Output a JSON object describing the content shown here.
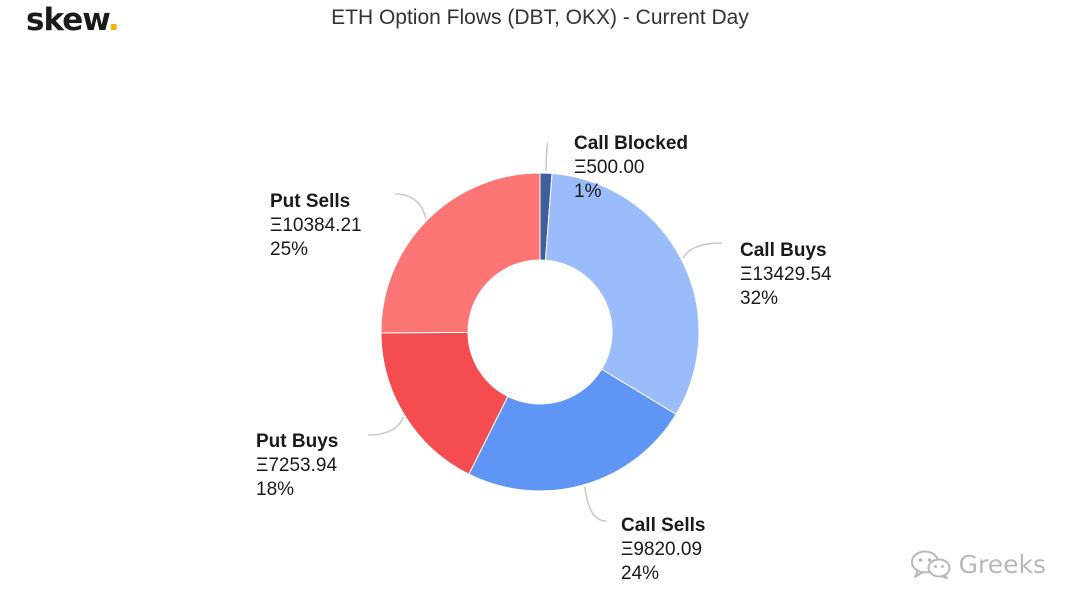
{
  "brand": {
    "name": "skew",
    "dot": "."
  },
  "watermark": {
    "text": "Greeks",
    "icon": "wechat-icon"
  },
  "chart_data": {
    "type": "pie",
    "donut": true,
    "title": "ETH Option Flows (DBT, OKX) - Current Day",
    "currency_symbol": "Ξ",
    "start_angle_deg": 0,
    "slices": [
      {
        "label": "Call Blocked",
        "value": 500.0,
        "value_text": "Ξ500.00",
        "percent_text": "1%",
        "color": "#3e5f9c"
      },
      {
        "label": "Call Buys",
        "value": 13429.54,
        "value_text": "Ξ13429.54",
        "percent_text": "32%",
        "color": "#9bbcfb"
      },
      {
        "label": "Call Sells",
        "value": 9820.09,
        "value_text": "Ξ9820.09",
        "percent_text": "24%",
        "color": "#5f96f5"
      },
      {
        "label": "Put Buys",
        "value": 7253.94,
        "value_text": "Ξ7253.94",
        "percent_text": "18%",
        "color": "#f54c4f"
      },
      {
        "label": "Put Sells",
        "value": 10384.21,
        "value_text": "Ξ10384.21",
        "percent_text": "25%",
        "color": "#fb7575"
      }
    ]
  }
}
